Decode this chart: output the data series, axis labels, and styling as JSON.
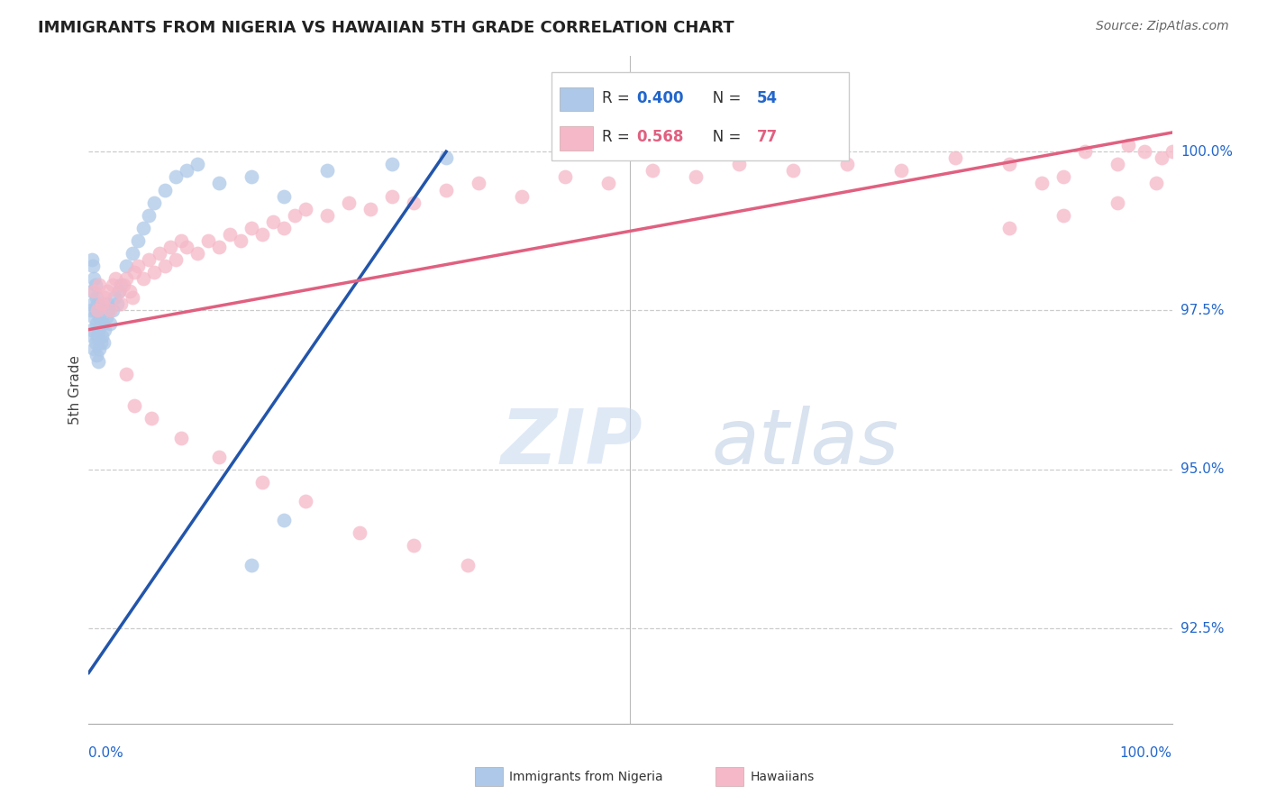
{
  "title": "IMMIGRANTS FROM NIGERIA VS HAWAIIAN 5TH GRADE CORRELATION CHART",
  "source": "Source: ZipAtlas.com",
  "ylabel": "5th Grade",
  "r_blue": 0.4,
  "n_blue": 54,
  "r_pink": 0.568,
  "n_pink": 77,
  "legend_blue": "Immigrants from Nigeria",
  "legend_pink": "Hawaiians",
  "blue_color": "#adc8e8",
  "pink_color": "#f5b8c8",
  "blue_line_color": "#2255aa",
  "pink_line_color": "#e06080",
  "text_blue": "#2266cc",
  "text_pink": "#e06080",
  "watermark_zip": "ZIP",
  "watermark_atlas": "atlas",
  "xlim": [
    0.0,
    100.0
  ],
  "ylim": [
    91.0,
    101.5
  ],
  "yticks": [
    92.5,
    95.0,
    97.5,
    100.0
  ],
  "blue_x": [
    0.2,
    0.3,
    0.3,
    0.3,
    0.4,
    0.4,
    0.4,
    0.5,
    0.5,
    0.5,
    0.6,
    0.6,
    0.6,
    0.7,
    0.7,
    0.7,
    0.8,
    0.8,
    0.9,
    0.9,
    1.0,
    1.0,
    1.1,
    1.2,
    1.3,
    1.4,
    1.5,
    1.6,
    1.7,
    1.8,
    2.0,
    2.2,
    2.4,
    2.6,
    2.8,
    3.0,
    3.5,
    4.0,
    4.5,
    5.0,
    5.5,
    6.0,
    7.0,
    8.0,
    9.0,
    10.0,
    12.0,
    15.0,
    18.0,
    22.0,
    28.0,
    33.0,
    15.0,
    18.0
  ],
  "blue_y": [
    97.5,
    97.2,
    97.8,
    98.3,
    97.1,
    97.6,
    98.2,
    96.9,
    97.4,
    98.0,
    97.0,
    97.5,
    97.9,
    96.8,
    97.3,
    97.7,
    97.1,
    97.6,
    96.7,
    97.2,
    96.9,
    97.4,
    97.0,
    97.1,
    97.3,
    97.0,
    97.2,
    97.4,
    97.6,
    97.5,
    97.3,
    97.5,
    97.7,
    97.6,
    97.8,
    97.9,
    98.2,
    98.4,
    98.6,
    98.8,
    99.0,
    99.2,
    99.4,
    99.6,
    99.7,
    99.8,
    99.5,
    99.6,
    99.3,
    99.7,
    99.8,
    99.9,
    93.5,
    94.2
  ],
  "pink_x": [
    0.5,
    0.8,
    1.0,
    1.2,
    1.5,
    1.7,
    2.0,
    2.2,
    2.5,
    2.8,
    3.0,
    3.2,
    3.5,
    3.8,
    4.0,
    4.2,
    4.5,
    5.0,
    5.5,
    6.0,
    6.5,
    7.0,
    7.5,
    8.0,
    8.5,
    9.0,
    10.0,
    11.0,
    12.0,
    13.0,
    14.0,
    15.0,
    16.0,
    17.0,
    18.0,
    19.0,
    20.0,
    22.0,
    24.0,
    26.0,
    28.0,
    30.0,
    33.0,
    36.0,
    40.0,
    44.0,
    48.0,
    52.0,
    56.0,
    60.0,
    65.0,
    70.0,
    75.0,
    80.0,
    85.0,
    88.0,
    90.0,
    92.0,
    95.0,
    96.0,
    97.5,
    99.0,
    100.0,
    85.0,
    90.0,
    95.0,
    98.5,
    3.5,
    4.2,
    5.8,
    8.5,
    12.0,
    16.0,
    20.0,
    25.0,
    30.0,
    35.0
  ],
  "pink_y": [
    97.8,
    97.5,
    97.9,
    97.6,
    97.7,
    97.8,
    97.5,
    97.9,
    98.0,
    97.8,
    97.6,
    97.9,
    98.0,
    97.8,
    97.7,
    98.1,
    98.2,
    98.0,
    98.3,
    98.1,
    98.4,
    98.2,
    98.5,
    98.3,
    98.6,
    98.5,
    98.4,
    98.6,
    98.5,
    98.7,
    98.6,
    98.8,
    98.7,
    98.9,
    98.8,
    99.0,
    99.1,
    99.0,
    99.2,
    99.1,
    99.3,
    99.2,
    99.4,
    99.5,
    99.3,
    99.6,
    99.5,
    99.7,
    99.6,
    99.8,
    99.7,
    99.8,
    99.7,
    99.9,
    99.8,
    99.5,
    99.6,
    100.0,
    99.8,
    100.1,
    100.0,
    99.9,
    100.0,
    98.8,
    99.0,
    99.2,
    99.5,
    96.5,
    96.0,
    95.8,
    95.5,
    95.2,
    94.8,
    94.5,
    94.0,
    93.8,
    93.5
  ],
  "blue_trend_x": [
    0.0,
    33.0
  ],
  "blue_trend_y": [
    91.8,
    100.0
  ],
  "pink_trend_x": [
    0.0,
    100.0
  ],
  "pink_trend_y": [
    97.2,
    100.3
  ]
}
